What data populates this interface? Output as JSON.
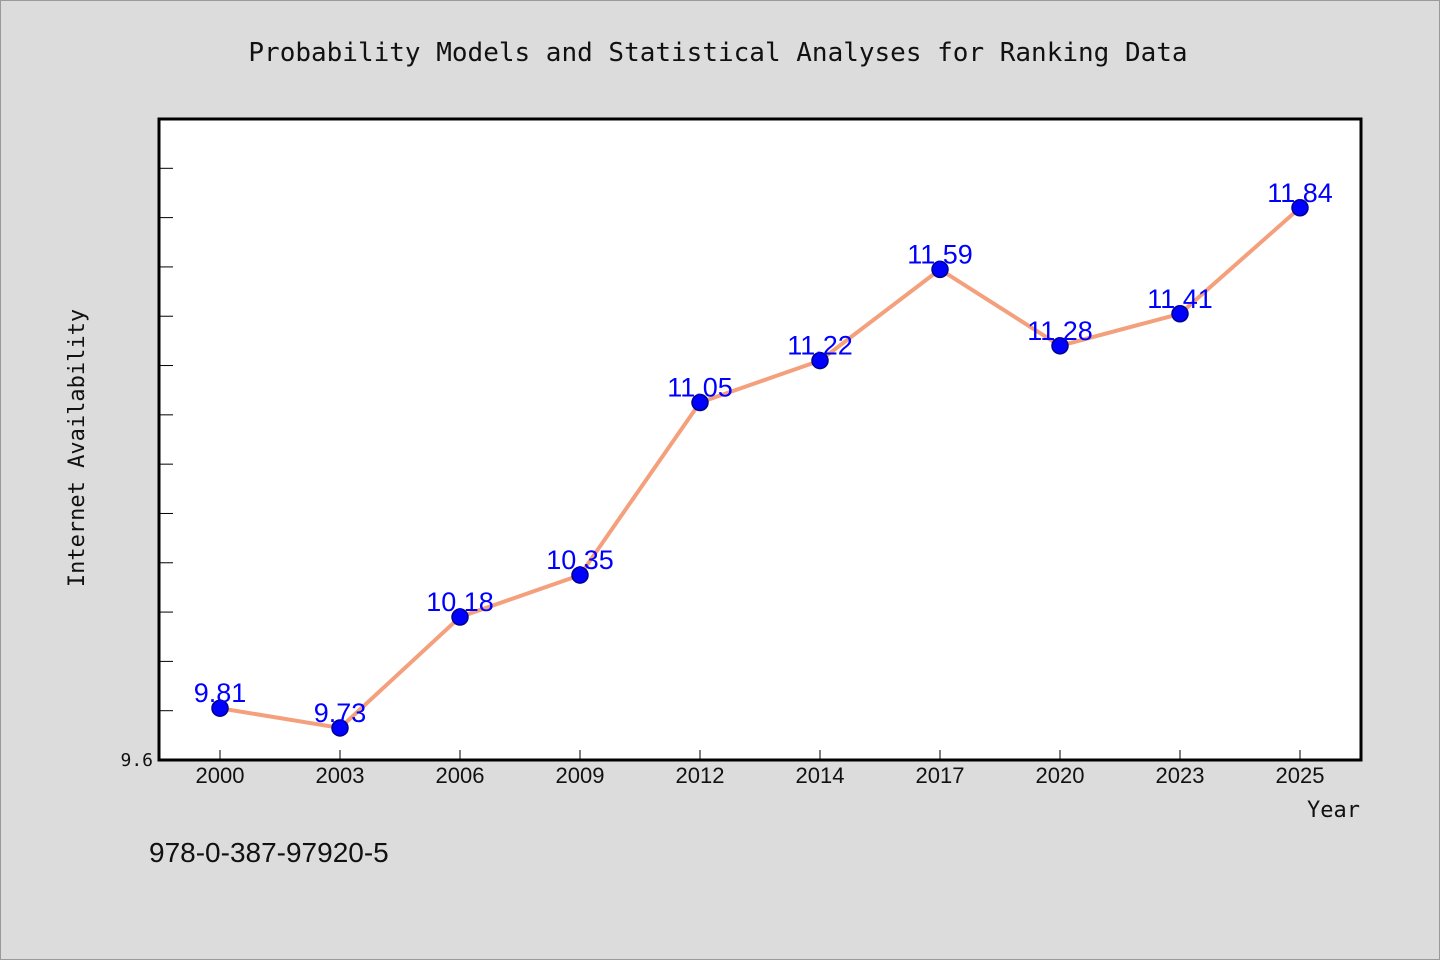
{
  "chart_data": {
    "type": "line",
    "title": "Probability Models and Statistical Analyses for Ranking Data",
    "xlabel": "Year",
    "ylabel": "Internet Availability",
    "categories": [
      "2000",
      "2003",
      "2006",
      "2009",
      "2012",
      "2014",
      "2017",
      "2020",
      "2023",
      "2025"
    ],
    "series": [
      {
        "values": [
          9.81,
          9.73,
          10.18,
          10.35,
          11.05,
          11.22,
          11.59,
          11.28,
          11.41,
          11.84
        ],
        "labels": [
          "9.81",
          "9.73",
          "10.18",
          "10.35",
          "11.05",
          "11.22",
          "11.59",
          "11.28",
          "11.41",
          "11.84"
        ]
      }
    ],
    "y_tick_labels": [
      "9.6"
    ],
    "ylim": [
      9.6,
      12.2
    ],
    "grid": false,
    "legend": "none",
    "colors": {
      "line": "#f4a07c",
      "marker": "#0000ff",
      "marker_edge": "#00008b",
      "data_label": "#0000ff",
      "plot_bg": "#ffffff",
      "figure_bg": "#dcdcdc"
    }
  },
  "annotation": {
    "isbn": "978-0-387-97920-5"
  }
}
